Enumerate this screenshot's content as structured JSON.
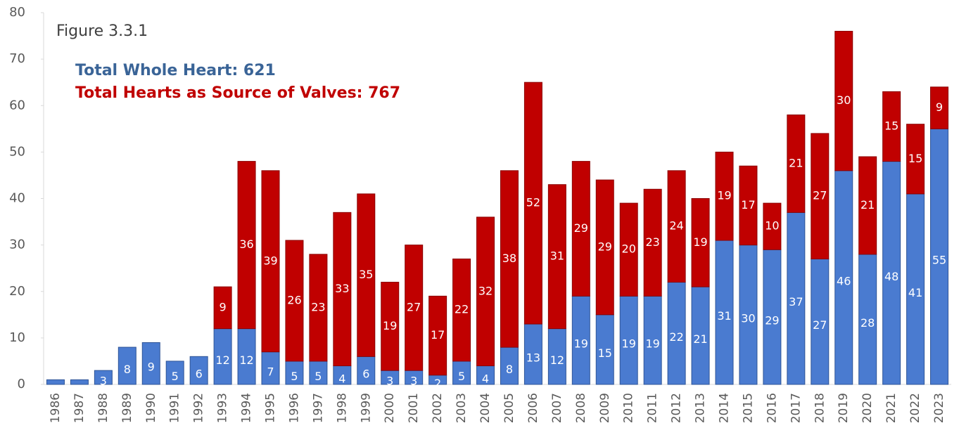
{
  "chart_data": {
    "type": "stacked_bar",
    "title": "Figure 3.3.1",
    "annotations": [
      "Total Whole Heart: 621",
      "Total Hearts as Source of Valves: 767"
    ],
    "categories": [
      "1986",
      "1987",
      "1988",
      "1989",
      "1990",
      "1991",
      "1992",
      "1993",
      "1994",
      "1995",
      "1996",
      "1997",
      "1998",
      "1999",
      "2000",
      "2001",
      "2002",
      "2003",
      "2004",
      "2005",
      "2006",
      "2007",
      "2008",
      "2009",
      "2010",
      "2011",
      "2012",
      "2013",
      "2014",
      "2015",
      "2016",
      "2017",
      "2018",
      "2019",
      "2020",
      "2021",
      "2022",
      "2023"
    ],
    "series": [
      {
        "name": "Whole Heart",
        "color": "#4a7bd0",
        "values": [
          1,
          1,
          3,
          8,
          9,
          5,
          6,
          12,
          12,
          7,
          5,
          5,
          4,
          6,
          3,
          3,
          2,
          5,
          4,
          8,
          13,
          12,
          19,
          15,
          19,
          19,
          22,
          21,
          31,
          30,
          29,
          37,
          27,
          46,
          28,
          48,
          41,
          55
        ],
        "value_labels": [
          null,
          null,
          "3",
          "8",
          "9",
          "5",
          "6",
          "12",
          "12",
          "7",
          "5",
          "5",
          "4",
          "6",
          "3",
          "3",
          "2",
          "5",
          "4",
          "8",
          "13",
          "12",
          "19",
          "15",
          "19",
          "19",
          "22",
          "21",
          "31",
          "30",
          "29",
          "37",
          "27",
          "46",
          "28",
          "48",
          "41",
          "55"
        ]
      },
      {
        "name": "Hearts as Source of Valves",
        "color": "#c00000",
        "values": [
          null,
          null,
          null,
          null,
          null,
          null,
          null,
          9,
          36,
          39,
          26,
          23,
          33,
          35,
          19,
          27,
          17,
          22,
          32,
          38,
          52,
          31,
          29,
          29,
          20,
          23,
          24,
          19,
          19,
          17,
          10,
          21,
          27,
          30,
          21,
          15,
          15,
          9
        ],
        "value_labels": [
          null,
          null,
          null,
          null,
          null,
          null,
          null,
          "9",
          "36",
          "39",
          "26",
          "23",
          "33",
          "35",
          "19",
          "27",
          "17",
          "22",
          "32",
          "38",
          "52",
          "31",
          "29",
          "29",
          "20",
          "23",
          "24",
          "19",
          "19",
          "17",
          "10",
          "21",
          "27",
          "30",
          "21",
          "15",
          "15",
          "9"
        ]
      }
    ],
    "ylim": [
      0,
      80
    ],
    "yticks": [
      0,
      10,
      20,
      30,
      40,
      50,
      60,
      70,
      80
    ]
  }
}
